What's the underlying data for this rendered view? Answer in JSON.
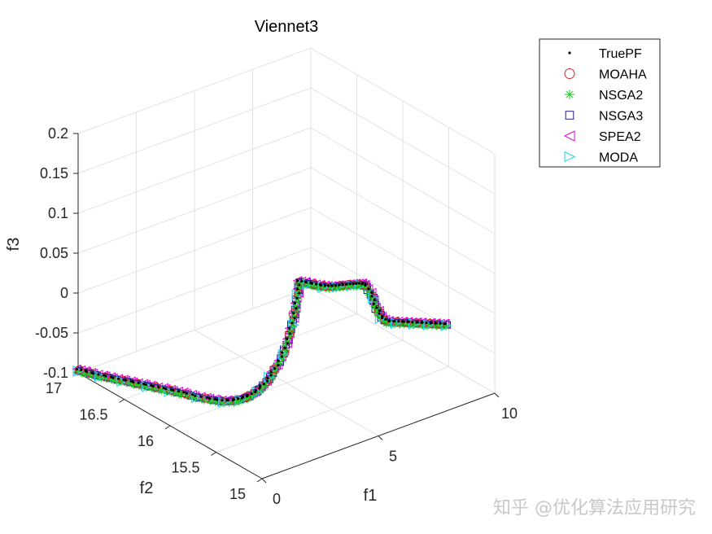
{
  "chart_data": {
    "type": "scatter3d",
    "title": "Viennet3",
    "xlabel": "f1",
    "ylabel": "f2",
    "zlabel": "f3",
    "xlim": [
      0,
      10
    ],
    "ylim": [
      15,
      17
    ],
    "zlim": [
      -0.1,
      0.2
    ],
    "x_ticks": [
      "0",
      "5",
      "10"
    ],
    "y_ticks": [
      "15",
      "15.5",
      "16",
      "16.5",
      "17"
    ],
    "z_ticks": [
      "-0.1",
      "-0.05",
      "0",
      "0.05",
      "0.1",
      "0.15",
      "0.2"
    ],
    "grid": true,
    "legend_position": "top-right",
    "series": [
      {
        "name": "TruePF",
        "marker": "dot",
        "color": "#000000"
      },
      {
        "name": "MOAHA",
        "marker": "circle",
        "color": "#d62728"
      },
      {
        "name": "NSGA2",
        "marker": "asterisk",
        "color": "#22cc22"
      },
      {
        "name": "NSGA3",
        "marker": "square",
        "color": "#1f1f8f"
      },
      {
        "name": "SPEA2",
        "marker": "triangle-left",
        "color": "#e600e6"
      },
      {
        "name": "MODA",
        "marker": "triangle-right",
        "color": "#22d3ee"
      }
    ],
    "front_points": [
      [
        0.0,
        17.0,
        -0.097
      ],
      [
        0.2,
        16.95,
        -0.099
      ],
      [
        0.4,
        16.88,
        -0.1
      ],
      [
        0.6,
        16.8,
        -0.1
      ],
      [
        0.8,
        16.72,
        -0.1
      ],
      [
        1.0,
        16.64,
        -0.1
      ],
      [
        1.2,
        16.56,
        -0.1
      ],
      [
        1.4,
        16.48,
        -0.1
      ],
      [
        1.6,
        16.4,
        -0.1
      ],
      [
        1.8,
        16.32,
        -0.1
      ],
      [
        2.0,
        16.22,
        -0.1
      ],
      [
        2.2,
        16.12,
        -0.099
      ],
      [
        2.4,
        16.04,
        -0.098
      ],
      [
        2.6,
        15.98,
        -0.096
      ],
      [
        2.8,
        15.94,
        -0.093
      ],
      [
        3.0,
        15.9,
        -0.089
      ],
      [
        3.2,
        15.87,
        -0.083
      ],
      [
        3.4,
        15.84,
        -0.075
      ],
      [
        3.6,
        15.82,
        -0.065
      ],
      [
        3.8,
        15.8,
        -0.053
      ],
      [
        4.0,
        15.78,
        -0.038
      ],
      [
        4.15,
        15.77,
        -0.022
      ],
      [
        4.3,
        15.76,
        -0.003
      ],
      [
        4.4,
        15.75,
        0.015
      ],
      [
        4.5,
        15.75,
        0.033
      ],
      [
        4.55,
        15.75,
        0.048
      ],
      [
        4.62,
        15.68,
        0.05
      ],
      [
        4.7,
        15.6,
        0.052
      ],
      [
        4.85,
        15.55,
        0.052
      ],
      [
        5.0,
        15.52,
        0.052
      ],
      [
        5.2,
        15.5,
        0.052
      ],
      [
        5.4,
        15.48,
        0.052
      ],
      [
        5.6,
        15.46,
        0.052
      ],
      [
        5.8,
        15.45,
        0.051
      ],
      [
        6.0,
        15.44,
        0.05
      ],
      [
        6.15,
        15.42,
        0.047
      ],
      [
        6.25,
        15.38,
        0.035
      ],
      [
        6.3,
        15.35,
        0.022
      ],
      [
        6.4,
        15.32,
        0.012
      ],
      [
        6.5,
        15.28,
        0.008
      ],
      [
        6.7,
        15.24,
        0.008
      ],
      [
        6.9,
        15.2,
        0.008
      ],
      [
        7.1,
        15.16,
        0.008
      ],
      [
        7.3,
        15.12,
        0.008
      ],
      [
        7.5,
        15.08,
        0.008
      ],
      [
        7.7,
        15.04,
        0.008
      ],
      [
        7.9,
        15.0,
        0.008
      ]
    ]
  },
  "watermark": "知乎 @优化算法应用研究"
}
